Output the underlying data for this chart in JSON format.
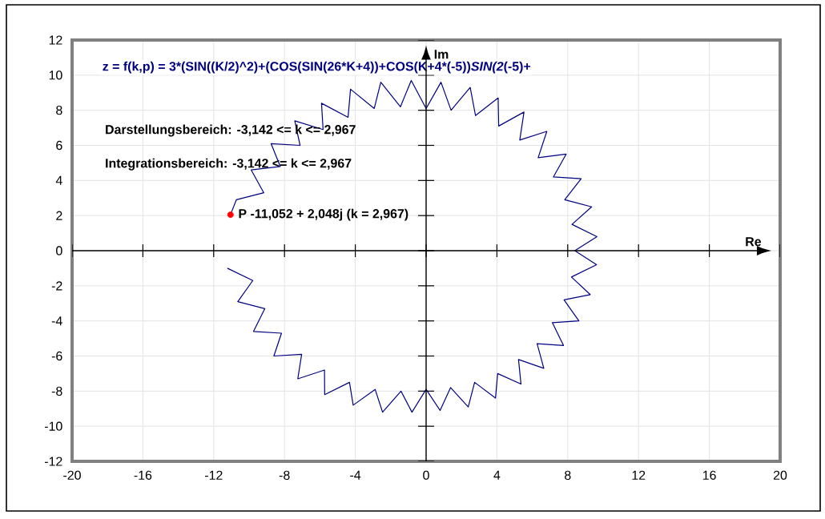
{
  "chart_data": {
    "type": "line",
    "title": "z = f(k,p) = 3*(SIN((K/2)^2)+(COS(SIN(26*K+4))+COS(K+4*(-5))*SIN(2*(-5)+",
    "xlabel": "Re",
    "ylabel": "Im",
    "annotations": [
      "Darstellungsbereich: -3,142 <= k <= 2,967",
      "Integrationsbereich: -3,142 <= k <= 2,967",
      {
        "text": "P -11,052 + 2,048j  (k = 2,967)",
        "x": -11.052,
        "y": 2.048
      }
    ],
    "xlim": [
      -20,
      20
    ],
    "ylim": [
      -12,
      12
    ],
    "xticks": [
      -20,
      -16,
      -12,
      -8,
      -4,
      0,
      4,
      8,
      12,
      16,
      20
    ],
    "yticks": [
      -12,
      -10,
      -8,
      -6,
      -4,
      -2,
      0,
      2,
      4,
      6,
      8,
      10,
      12
    ],
    "grid": true,
    "marker": "none",
    "line_style": "solid",
    "series": [
      {
        "color": "#000080",
        "x": [
          -11.23,
          -9.79,
          -10.64,
          -9.11,
          -9.75,
          -8.17,
          -8.6,
          -7.03,
          -7.25,
          -5.74,
          -5.73,
          -4.33,
          -4.12,
          -2.88,
          -2.46,
          -1.42,
          -0.8,
          0,
          0.79,
          1.38,
          2.38,
          2.74,
          3.92,
          4.04,
          5.36,
          5.22,
          6.65,
          6.27,
          7.76,
          7.13,
          8.63,
          7.79,
          9.27,
          8.21,
          9.63,
          8.4,
          9.65,
          8.24,
          9.35,
          7.83,
          8.76,
          7.19,
          7.91,
          6.33,
          6.82,
          5.29,
          5.53,
          4.1,
          4.07,
          2.79,
          2.49,
          1.41,
          0.84,
          0,
          -0.84,
          -1.45,
          -2.56,
          -2.93,
          -4.27,
          -4.41,
          -5.91,
          -5.82,
          -7.42,
          -7.12,
          -8.76,
          -8.24,
          -9.88,
          -9.17,
          -10.72,
          -11.052
        ],
        "values": [
          -1.0,
          -1.7,
          -2.9,
          -3.3,
          -4.6,
          -4.7,
          -6.0,
          -5.9,
          -7.3,
          -6.8,
          -8.2,
          -7.5,
          -8.8,
          -7.9,
          -9.2,
          -8.0,
          -9.2,
          -7.9,
          -9.1,
          -7.8,
          -8.9,
          -7.5,
          -8.4,
          -7.0,
          -7.6,
          -6.2,
          -6.7,
          -5.3,
          -5.4,
          -4.1,
          -4.0,
          -2.8,
          -2.5,
          -1.5,
          -0.8,
          0,
          0.8,
          1.5,
          2.5,
          2.9,
          4.1,
          4.2,
          5.5,
          5.3,
          6.8,
          6.3,
          7.9,
          7.1,
          8.7,
          7.7,
          9.3,
          8.0,
          9.6,
          8.1,
          9.7,
          8.2,
          9.6,
          8.1,
          9.2,
          7.6,
          8.4,
          6.9,
          7.4,
          6.0,
          6.1,
          4.8,
          4.6,
          3.3,
          2.9,
          2.048
        ]
      },
      {
        "type": "scatter",
        "marker": "circle",
        "color": "#ff0000",
        "x": [
          -11.052
        ],
        "values": [
          2.048
        ]
      }
    ]
  }
}
